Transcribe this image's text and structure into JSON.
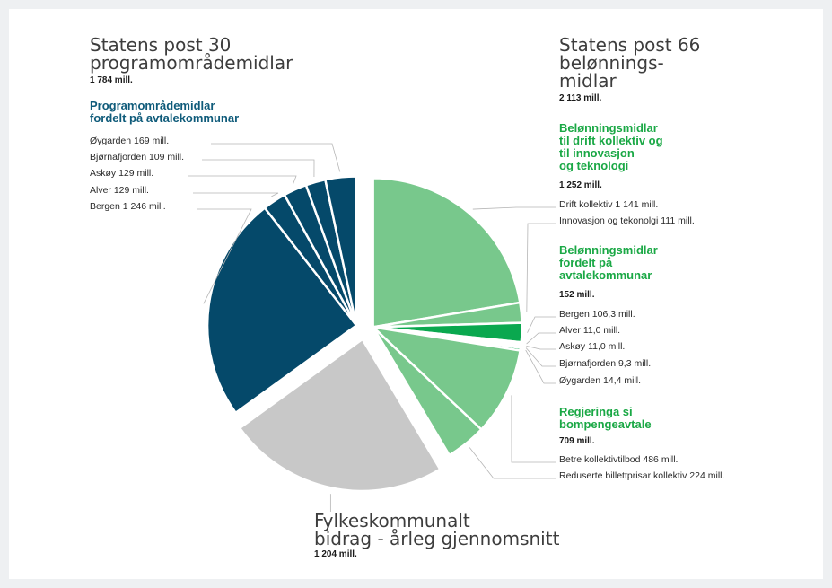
{
  "colors": {
    "navy": "#05496a",
    "green_light": "#78c88c",
    "green_dark": "#0aa84f",
    "grey": "#c8c8c8",
    "heading_green": "#1aa845",
    "heading_navy": "#0f5b7a"
  },
  "headings": {
    "post30_title": "Statens post 30\nprogramområdemidlar",
    "post30_amount": "1 784 mill.",
    "post30_sub": "Programområdemidlar\nfordelt på avtalekommunar",
    "post66_title": "Statens post 66\nbelønnings-\nmidlar",
    "post66_amount": "2 113 mill.",
    "drift_sub": "Belønningsmidlar\ntil drift kollektiv og\ntil innovasjon\nog teknologi",
    "drift_amount": "1 252 mill.",
    "kommunar_sub": "Belønningsmidlar\nfordelt på\navtalekommunar",
    "kommunar_amount": "152 mill.",
    "bompenge_sub": "Regjeringa si\nbompengeavtale",
    "bompenge_amount": "709 mill.",
    "fylke_title": "Fylkeskommunalt\nbidrag - årleg gjennomsnitt",
    "fylke_amount": "1 204 mill."
  },
  "labels": {
    "oygarden30": "Øygarden 169 mill.",
    "bjornafjorden30": "Bjørnafjorden 109 mill.",
    "askoy30": "Askøy 129 mill.",
    "alver30": "Alver 129 mill.",
    "bergen30": "Bergen 1 246 mill.",
    "drift": "Drift kollektiv 1 141 mill.",
    "innovasjon": "Innovasjon og tekonolgi 111 mill.",
    "bergen66": "Bergen 106,3 mill.",
    "alver66": "Alver 11,0 mill.",
    "askoy66": "Askøy 11,0 mill.",
    "bjornafjorden66": "Bjørnafjorden 9,3 mill.",
    "oygarden66": "Øygarden 14,4 mill.",
    "betre": "Betre kollektivtilbod 486 mill.",
    "reduserte": "Reduserte billettprisar kollektiv 224 mill."
  },
  "chart_data": {
    "type": "pie",
    "units": "mill.",
    "groups": [
      {
        "name": "Statens post 66 belønningsmidlar",
        "total": 2113,
        "slices": [
          {
            "label": "Drift kollektiv",
            "value": 1141,
            "color": "#78c88c"
          },
          {
            "label": "Innovasjon og tekonolgi",
            "value": 111,
            "color": "#78c88c"
          },
          {
            "label": "Bergen",
            "value": 106.3,
            "color": "#0aa84f"
          },
          {
            "label": "Alver",
            "value": 11.0,
            "color": "#0aa84f"
          },
          {
            "label": "Askøy",
            "value": 11.0,
            "color": "#0aa84f"
          },
          {
            "label": "Bjørnafjorden",
            "value": 9.3,
            "color": "#0aa84f"
          },
          {
            "label": "Øygarden",
            "value": 14.4,
            "color": "#0aa84f"
          },
          {
            "label": "Betre kollektivtilbod",
            "value": 486,
            "color": "#78c88c"
          },
          {
            "label": "Reduserte billettprisar kollektiv",
            "value": 224,
            "color": "#78c88c"
          }
        ]
      },
      {
        "name": "Fylkeskommunalt bidrag - årleg gjennomsnitt",
        "total": 1204,
        "slices": [
          {
            "label": "Fylkeskommunalt bidrag",
            "value": 1204,
            "color": "#c8c8c8"
          }
        ]
      },
      {
        "name": "Statens post 30 programområdemidlar",
        "total": 1784,
        "slices": [
          {
            "label": "Bergen",
            "value": 1246,
            "color": "#05496a"
          },
          {
            "label": "Alver",
            "value": 129,
            "color": "#05496a"
          },
          {
            "label": "Askøy",
            "value": 129,
            "color": "#05496a"
          },
          {
            "label": "Bjørnafjorden",
            "value": 109,
            "color": "#05496a"
          },
          {
            "label": "Øygarden",
            "value": 169,
            "color": "#05496a"
          }
        ]
      }
    ]
  }
}
